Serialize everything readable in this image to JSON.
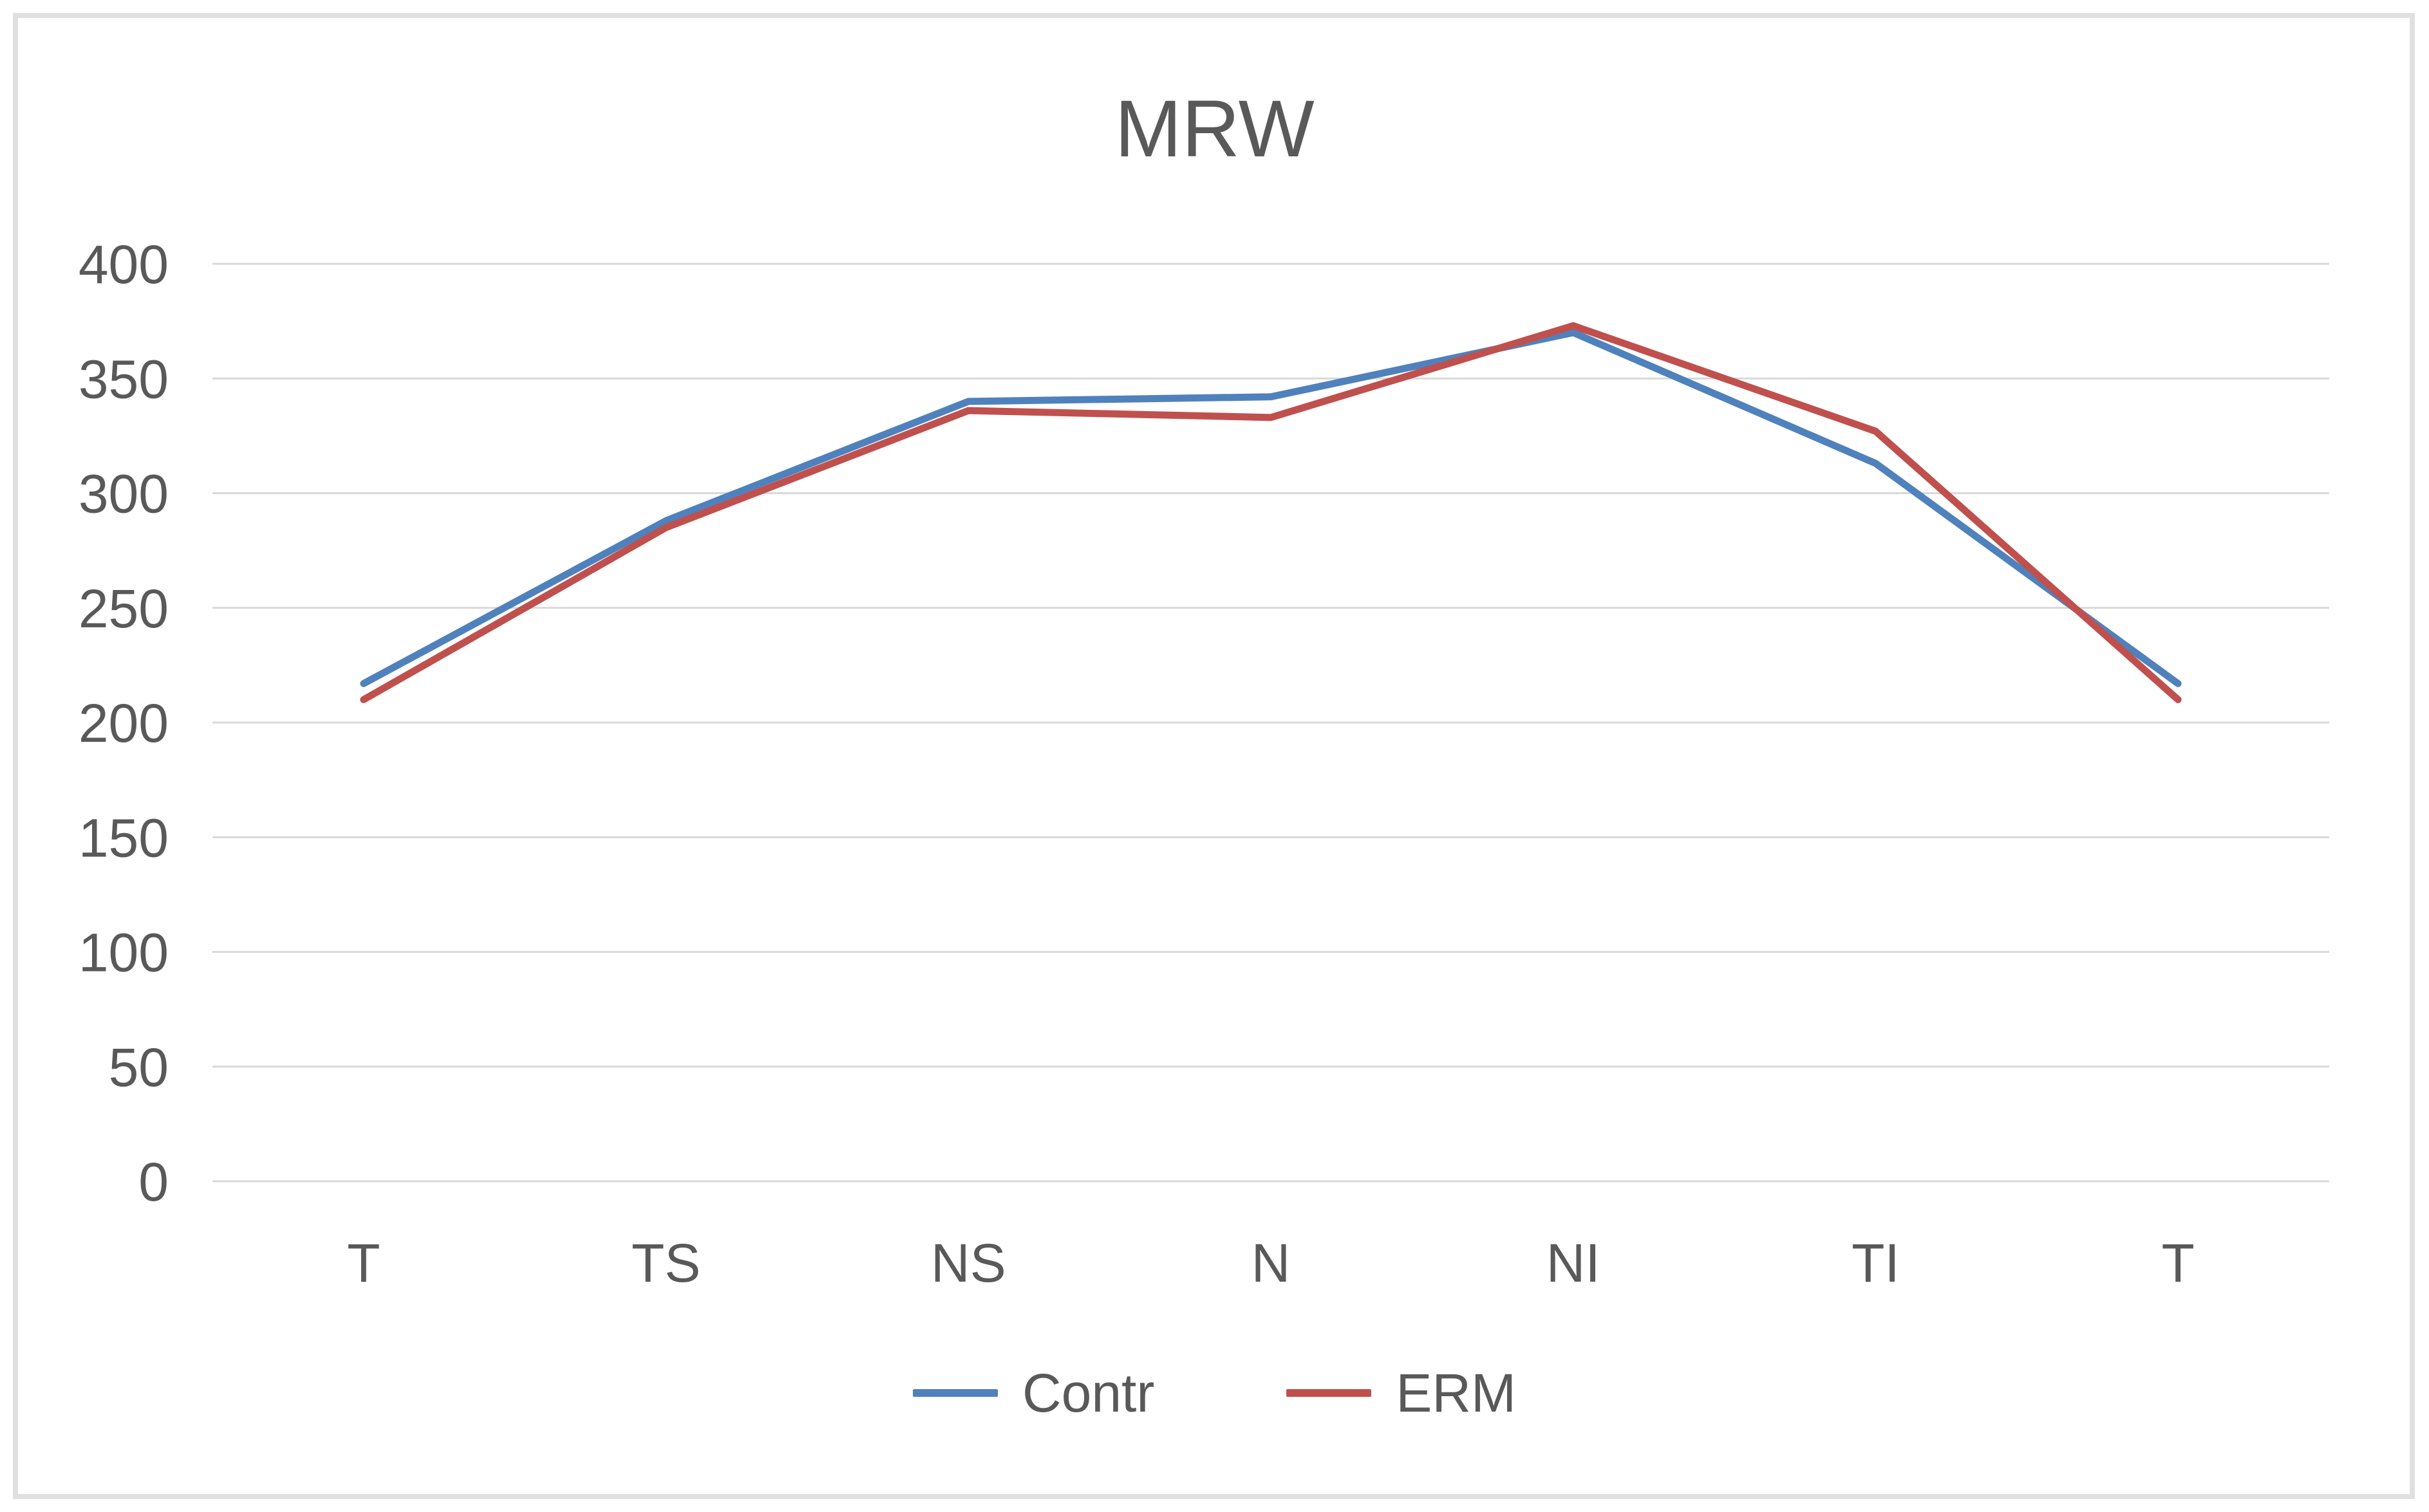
{
  "chart_data": {
    "type": "line",
    "title": "MRW",
    "categories": [
      "T",
      "TS",
      "NS",
      "N",
      "NI",
      "TI",
      "T"
    ],
    "series": [
      {
        "name": "Contr",
        "color": "#4F81BD",
        "values": [
          217,
          288,
          340,
          342,
          370,
          313,
          217
        ]
      },
      {
        "name": "ERM",
        "color": "#C0504D",
        "values": [
          210,
          285,
          336,
          333,
          373,
          327,
          210
        ]
      }
    ],
    "xlabel": "",
    "ylabel": "",
    "ylim": [
      0,
      400
    ],
    "ytick_step": 50,
    "ytick_labels": [
      "0",
      "50",
      "100",
      "150",
      "200",
      "250",
      "300",
      "350",
      "400"
    ],
    "grid": true,
    "legend_position": "bottom",
    "colors": {
      "gridline": "#D9D9D9",
      "axis_text": "#595959",
      "title_text": "#595959",
      "frame_border": "#E0E0E0",
      "background": "#FFFFFF"
    }
  }
}
